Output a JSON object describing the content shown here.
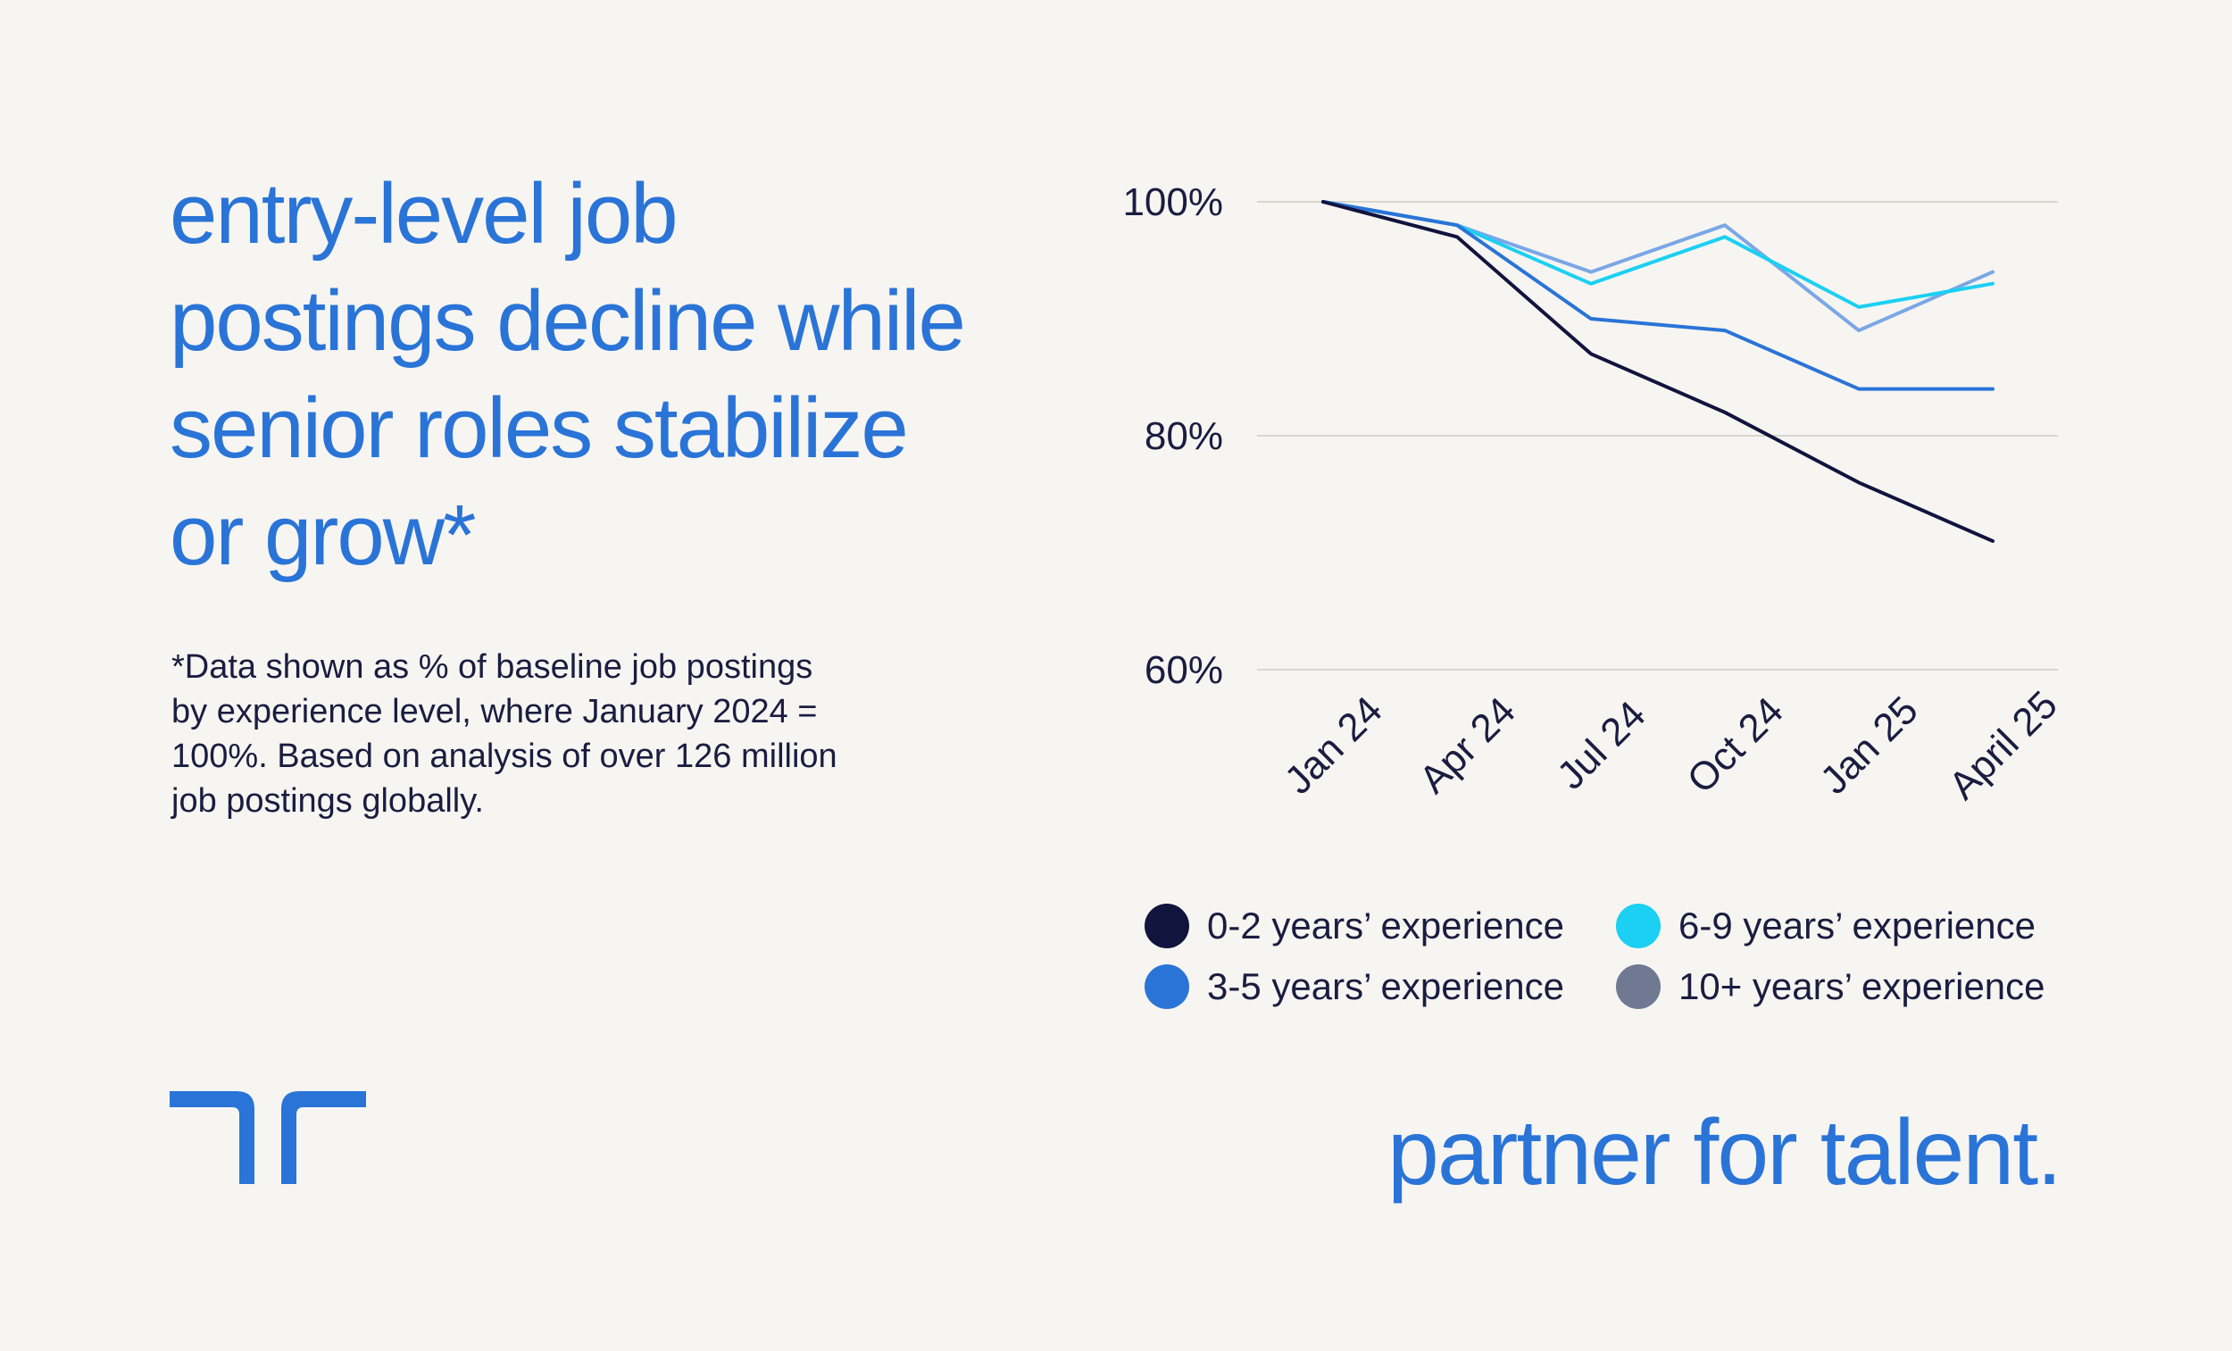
{
  "headline": "entry-level job postings decline while senior roles stabilize or grow*",
  "footnote": "*Data shown as % of baseline job postings by experience level, where January 2024 = 100%. Based on analysis of over 126 million job postings globally.",
  "tagline": "partner for talent.",
  "logo_icon": "randstad-logo-icon",
  "colors": {
    "brand": "#2a74d8",
    "text": "#1a1d40",
    "gridline": "#d9d6d0",
    "background": "#f7f5f1"
  },
  "chart_data": {
    "type": "line",
    "categories": [
      "Jan 24",
      "Apr 24",
      "Jul 24",
      "Oct 24",
      "Jan 25",
      "April 25"
    ],
    "y_ticks": [
      "100%",
      "80%",
      "60%"
    ],
    "y_tick_values": [
      100,
      80,
      60
    ],
    "ylim": [
      60,
      100
    ],
    "grid": true,
    "legend_placement": "bottom",
    "series": [
      {
        "name": "0-2 years’ experience",
        "color": "#11143d",
        "values": [
          100,
          97,
          87,
          82,
          76,
          71
        ]
      },
      {
        "name": "3-5 years’ experience",
        "color": "#2a74d8",
        "values": [
          100,
          98,
          90,
          89,
          84,
          84
        ]
      },
      {
        "name": "6-9 years’ experience",
        "color": "#1bd0f2",
        "values": [
          100,
          98,
          93,
          97,
          91,
          93
        ]
      },
      {
        "name": "10+ years’ experience",
        "color": "#7aa7e6",
        "values": [
          100,
          98,
          94,
          98,
          89,
          94
        ]
      }
    ],
    "legend_swatch_colors": [
      "#11143d",
      "#2a74d8",
      "#1bd0f2",
      "#6f7a92"
    ]
  }
}
